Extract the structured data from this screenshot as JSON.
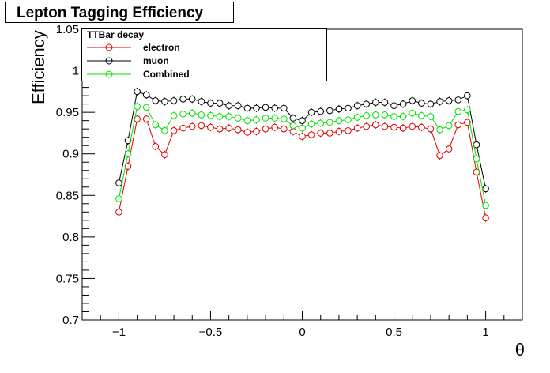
{
  "chart_data": {
    "type": "line",
    "title": "Lepton Tagging Efficiency",
    "xlabel": "θ",
    "ylabel": "Efficiency",
    "xlim": [
      -1.2,
      1.2
    ],
    "ylim": [
      0.7,
      1.05
    ],
    "xticks": [
      {
        "value": -1,
        "label": "−1"
      },
      {
        "value": -0.5,
        "label": "−0.5"
      },
      {
        "value": 0,
        "label": "0"
      },
      {
        "value": 0.5,
        "label": "0.5"
      },
      {
        "value": 1,
        "label": "1"
      }
    ],
    "yticks": [
      {
        "value": 0.7,
        "label": "0.7"
      },
      {
        "value": 0.75,
        "label": "0.75"
      },
      {
        "value": 0.8,
        "label": "0.8"
      },
      {
        "value": 0.85,
        "label": "0.85"
      },
      {
        "value": 0.9,
        "label": "0.9"
      },
      {
        "value": 0.95,
        "label": "0.95"
      },
      {
        "value": 1,
        "label": "1"
      },
      {
        "value": 1.05,
        "label": "1.05"
      }
    ],
    "legend": {
      "title": "TTBar decay",
      "placement": "top-left"
    },
    "x": [
      -1.0,
      -0.95,
      -0.9,
      -0.85,
      -0.8,
      -0.75,
      -0.7,
      -0.65,
      -0.6,
      -0.55,
      -0.5,
      -0.45,
      -0.4,
      -0.35,
      -0.3,
      -0.25,
      -0.2,
      -0.15,
      -0.1,
      -0.05,
      0.0,
      0.05,
      0.1,
      0.15,
      0.2,
      0.25,
      0.3,
      0.35,
      0.4,
      0.45,
      0.5,
      0.55,
      0.6,
      0.65,
      0.7,
      0.75,
      0.8,
      0.85,
      0.9,
      0.95,
      1.0
    ],
    "series": [
      {
        "name": "electron",
        "color": "#e00000",
        "values": [
          0.83,
          0.885,
          0.942,
          0.942,
          0.909,
          0.899,
          0.928,
          0.931,
          0.933,
          0.934,
          0.932,
          0.93,
          0.931,
          0.929,
          0.926,
          0.927,
          0.93,
          0.932,
          0.93,
          0.927,
          0.921,
          0.923,
          0.925,
          0.925,
          0.927,
          0.928,
          0.931,
          0.933,
          0.935,
          0.933,
          0.932,
          0.931,
          0.933,
          0.932,
          0.93,
          0.898,
          0.906,
          0.935,
          0.938,
          0.878,
          0.823
        ]
      },
      {
        "name": "muon",
        "color": "#000000",
        "values": [
          0.865,
          0.916,
          0.975,
          0.971,
          0.964,
          0.963,
          0.964,
          0.966,
          0.966,
          0.963,
          0.961,
          0.961,
          0.958,
          0.958,
          0.955,
          0.955,
          0.956,
          0.955,
          0.955,
          0.943,
          0.94,
          0.95,
          0.951,
          0.952,
          0.954,
          0.955,
          0.958,
          0.96,
          0.962,
          0.962,
          0.958,
          0.96,
          0.964,
          0.961,
          0.96,
          0.963,
          0.964,
          0.965,
          0.97,
          0.911,
          0.858
        ]
      },
      {
        "name": "Combined",
        "color": "#00e000",
        "values": [
          0.846,
          0.9,
          0.957,
          0.956,
          0.935,
          0.928,
          0.946,
          0.948,
          0.949,
          0.947,
          0.946,
          0.945,
          0.945,
          0.943,
          0.94,
          0.941,
          0.943,
          0.943,
          0.942,
          0.934,
          0.931,
          0.936,
          0.937,
          0.938,
          0.94,
          0.941,
          0.944,
          0.946,
          0.947,
          0.947,
          0.945,
          0.945,
          0.949,
          0.946,
          0.945,
          0.929,
          0.934,
          0.951,
          0.953,
          0.894,
          0.838
        ]
      }
    ]
  }
}
